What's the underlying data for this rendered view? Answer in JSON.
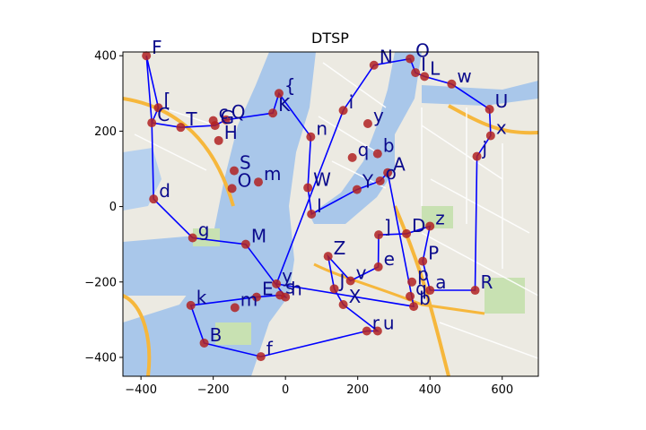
{
  "chart_data": {
    "type": "scatter",
    "title": "DTSP",
    "xlabel": "",
    "ylabel": "",
    "xlim": [
      -450,
      700
    ],
    "ylim": [
      -450,
      410
    ],
    "xticks": [
      -400,
      -200,
      0,
      200,
      400,
      600
    ],
    "yticks": [
      -400,
      -200,
      0,
      200,
      400
    ],
    "grid": false,
    "background": "street map of lower Manhattan, Brooklyn and Jersey City",
    "colors": {
      "route": "#0000ff",
      "point": "#b22222",
      "label": "#0a0a8c"
    },
    "points": [
      {
        "label": "F",
        "x": -385,
        "y": 400
      },
      {
        "label": "[",
        "x": -352,
        "y": 262
      },
      {
        "label": "C",
        "x": -370,
        "y": 222
      },
      {
        "label": "T",
        "x": -290,
        "y": 210
      },
      {
        "label": "d",
        "x": -365,
        "y": 20
      },
      {
        "label": "g",
        "x": -257,
        "y": -83
      },
      {
        "label": "M",
        "x": -110,
        "y": -100
      },
      {
        "label": "y",
        "x": -25,
        "y": -205
      },
      {
        "label": "s",
        "x": -15,
        "y": -235
      },
      {
        "label": "h",
        "x": 0,
        "y": -240
      },
      {
        "label": "E",
        "x": -80,
        "y": -240
      },
      {
        "label": "k",
        "x": -262,
        "y": -262
      },
      {
        "label": "m",
        "x": -140,
        "y": -268
      },
      {
        "label": "B",
        "x": -225,
        "y": -362
      },
      {
        "label": "f",
        "x": -68,
        "y": -398
      },
      {
        "label": "r",
        "x": 225,
        "y": -330
      },
      {
        "label": "u",
        "x": 255,
        "y": -330
      },
      {
        "label": "X",
        "x": 160,
        "y": -260
      },
      {
        "label": "J",
        "x": 135,
        "y": -218
      },
      {
        "label": "Z",
        "x": 118,
        "y": -132
      },
      {
        "label": "v",
        "x": 180,
        "y": -197
      },
      {
        "label": "e",
        "x": 257,
        "y": -160
      },
      {
        "label": "]",
        "x": 258,
        "y": -75
      },
      {
        "label": "D",
        "x": 335,
        "y": -72
      },
      {
        "label": "z",
        "x": 400,
        "y": -52
      },
      {
        "label": "P",
        "x": 380,
        "y": -145
      },
      {
        "label": "p",
        "x": 350,
        "y": -200
      },
      {
        "label": "a",
        "x": 400,
        "y": -222
      },
      {
        "label": "q",
        "x": 345,
        "y": -238
      },
      {
        "label": "b",
        "x": 355,
        "y": -265
      },
      {
        "label": "R",
        "x": 525,
        "y": -222
      },
      {
        "label": "j",
        "x": 530,
        "y": 133
      },
      {
        "label": "x",
        "x": 568,
        "y": 188
      },
      {
        "label": "U",
        "x": 565,
        "y": 258
      },
      {
        "label": "w",
        "x": 460,
        "y": 325
      },
      {
        "label": "L",
        "x": 385,
        "y": 345
      },
      {
        "label": "I",
        "x": 360,
        "y": 355
      },
      {
        "label": "O",
        "x": 345,
        "y": 392
      },
      {
        "label": "N",
        "x": 245,
        "y": 375
      },
      {
        "label": "i",
        "x": 160,
        "y": 255
      },
      {
        "label": "y",
        "x": 228,
        "y": 220
      },
      {
        "label": "b",
        "x": 255,
        "y": 140
      },
      {
        "label": "q",
        "x": 185,
        "y": 130
      },
      {
        "label": "A",
        "x": 283,
        "y": 90
      },
      {
        "label": "o",
        "x": 262,
        "y": 68
      },
      {
        "label": "Y",
        "x": 198,
        "y": 45
      },
      {
        "label": "W",
        "x": 62,
        "y": 50
      },
      {
        "label": "l",
        "x": 72,
        "y": -20
      },
      {
        "label": "n",
        "x": 70,
        "y": 185
      },
      {
        "label": "{",
        "x": -18,
        "y": 300
      },
      {
        "label": "K",
        "x": -35,
        "y": 248
      },
      {
        "label": "S",
        "x": -142,
        "y": 95
      },
      {
        "label": "m",
        "x": -75,
        "y": 65
      },
      {
        "label": "Q",
        "x": -165,
        "y": 230
      },
      {
        "label": "G",
        "x": -195,
        "y": 215
      },
      {
        "label": "c",
        "x": -200,
        "y": 228
      },
      {
        "label": "H",
        "x": -185,
        "y": 175
      },
      {
        "label": "O",
        "x": -148,
        "y": 48
      }
    ],
    "route": [
      "F",
      "C",
      "T",
      "G",
      "Q",
      "K",
      "{",
      "n",
      "W",
      "l",
      "Y",
      "o",
      "A",
      "b",
      "y",
      "i",
      "N",
      "O",
      "I",
      "L",
      "w",
      "U",
      "x",
      "j",
      "R",
      "a",
      "P",
      "z",
      "D",
      "]",
      "e",
      "v",
      "Z",
      "J",
      "X",
      "u",
      "r",
      "f",
      "B",
      "k",
      "E",
      "s",
      "h",
      "M",
      "g",
      "d",
      "C",
      "[",
      "F"
    ]
  }
}
